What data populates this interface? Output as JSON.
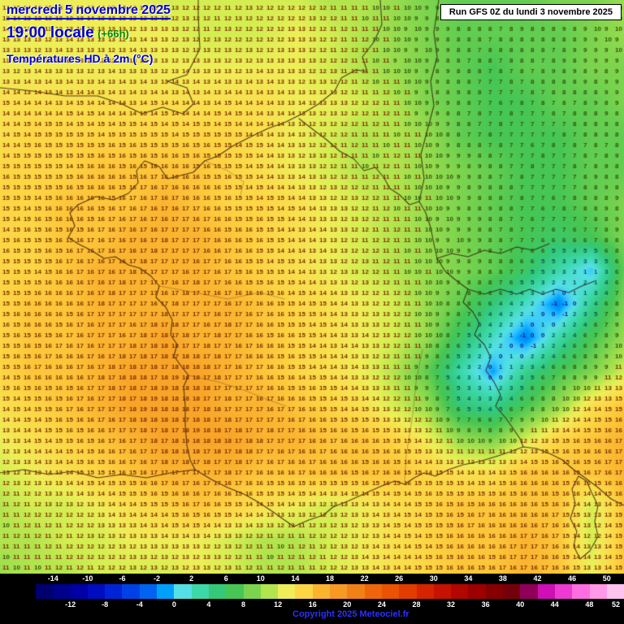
{
  "header": {
    "date": "mercredi 5 novembre 2025",
    "time": "19:00 locale",
    "offset": "(+66h)",
    "parameter": "Températures HD à 2m (°C)"
  },
  "run_box": {
    "text": "Run GFS 0Z du lundi 3 novembre 2025"
  },
  "footer": {
    "copyright": "Copyright 2025 Meteociel.fr"
  },
  "colors": {
    "header_blue": "#0000cc",
    "offset_green": "#008800",
    "copyright_blue": "#2f2fff",
    "background_black": "#000000"
  },
  "scale": {
    "min": -16,
    "max": 52,
    "step": 2,
    "top_labels": [
      "-14",
      "-10",
      "-6",
      "-2",
      "2",
      "6",
      "10",
      "14",
      "18",
      "22",
      "26",
      "30",
      "34",
      "38",
      "42",
      "46",
      "50"
    ],
    "bottom_labels": [
      "-12",
      "-8",
      "-4",
      "0",
      "4",
      "8",
      "12",
      "16",
      "20",
      "24",
      "28",
      "32",
      "36",
      "40",
      "44",
      "48",
      "52"
    ],
    "stops": [
      [
        -16,
        "#000060"
      ],
      [
        -10,
        "#0000b4"
      ],
      [
        -6,
        "#0030e0"
      ],
      [
        -3,
        "#0064f0"
      ],
      [
        -1,
        "#00a0ff"
      ],
      [
        0,
        "#38c8ff"
      ],
      [
        1,
        "#54e0e4"
      ],
      [
        3,
        "#3cd8a8"
      ],
      [
        5,
        "#34c878"
      ],
      [
        7,
        "#46c654"
      ],
      [
        9,
        "#7cd44e"
      ],
      [
        11,
        "#b2e44e"
      ],
      [
        12,
        "#d4ee52"
      ],
      [
        13,
        "#eeee58"
      ],
      [
        14,
        "#f8e04e"
      ],
      [
        15,
        "#fcd644"
      ],
      [
        16,
        "#fcc63a"
      ],
      [
        17,
        "#fab430"
      ],
      [
        18,
        "#f8a428"
      ],
      [
        20,
        "#f59020"
      ],
      [
        22,
        "#f07010"
      ],
      [
        26,
        "#e84800"
      ],
      [
        30,
        "#d01800"
      ],
      [
        34,
        "#a80000"
      ],
      [
        38,
        "#7c0000"
      ],
      [
        40,
        "#6c0014"
      ],
      [
        42,
        "#b400a0"
      ],
      [
        44,
        "#e420c8"
      ],
      [
        47,
        "#ff6ee0"
      ],
      [
        50,
        "#ffaeea"
      ],
      [
        52,
        "#ffd8f4"
      ]
    ]
  },
  "chart_data": {
    "type": "heatmap",
    "title": "Températures HD à 2m (°C)",
    "units": "°C",
    "valid_time": "mercredi 5 novembre 2025 19:00 locale (+66h)",
    "model_run": "Run GFS 0Z du lundi 3 novembre 2025",
    "legend_range": [
      -16,
      52
    ],
    "grid": {
      "cols": 20,
      "rows": 18,
      "note": "2m temperatures (°C) over France/W-Europe, coarse control grid west-to-east, north-to-south",
      "temps": [
        [
          13,
          13,
          13,
          13,
          13,
          12,
          12,
          12,
          12,
          12,
          11,
          11,
          10,
          9,
          8,
          8,
          8,
          9,
          9,
          10
        ],
        [
          13,
          13,
          13,
          13,
          13,
          13,
          12,
          12,
          12,
          13,
          12,
          11,
          10,
          9,
          8,
          8,
          8,
          8,
          9,
          10
        ],
        [
          13,
          13,
          13,
          13,
          13,
          13,
          13,
          13,
          13,
          13,
          12,
          11,
          10,
          9,
          8,
          7,
          8,
          8,
          9,
          9
        ],
        [
          14,
          14,
          14,
          14,
          14,
          14,
          14,
          14,
          14,
          13,
          13,
          12,
          11,
          9,
          8,
          7,
          7,
          8,
          8,
          9
        ],
        [
          14,
          15,
          15,
          15,
          15,
          15,
          15,
          15,
          14,
          13,
          12,
          11,
          11,
          10,
          8,
          7,
          7,
          7,
          8,
          8
        ],
        [
          15,
          15,
          15,
          16,
          16,
          16,
          16,
          15,
          14,
          13,
          12,
          11,
          11,
          10,
          9,
          8,
          7,
          7,
          8,
          8
        ],
        [
          15,
          15,
          16,
          16,
          16,
          17,
          16,
          15,
          15,
          14,
          13,
          12,
          11,
          10,
          9,
          8,
          7,
          7,
          8,
          9
        ],
        [
          15,
          15,
          16,
          16,
          17,
          17,
          17,
          16,
          15,
          14,
          13,
          12,
          11,
          10,
          9,
          8,
          7,
          6,
          7,
          9
        ],
        [
          15,
          15,
          16,
          17,
          17,
          17,
          17,
          16,
          15,
          14,
          13,
          12,
          11,
          10,
          9,
          8,
          6,
          3,
          0,
          8
        ],
        [
          15,
          16,
          16,
          17,
          17,
          17,
          17,
          17,
          16,
          15,
          14,
          13,
          12,
          10,
          8,
          5,
          2,
          -2,
          4,
          9
        ],
        [
          15,
          16,
          16,
          17,
          17,
          18,
          17,
          17,
          16,
          15,
          14,
          13,
          12,
          10,
          6,
          2,
          -2,
          3,
          7,
          10
        ],
        [
          15,
          16,
          16,
          17,
          18,
          18,
          18,
          17,
          16,
          15,
          14,
          13,
          11,
          8,
          3,
          -1,
          4,
          7,
          9,
          12
        ],
        [
          14,
          15,
          16,
          17,
          18,
          18,
          18,
          17,
          17,
          16,
          15,
          14,
          12,
          10,
          5,
          4,
          7,
          10,
          14,
          16
        ],
        [
          13,
          14,
          15,
          16,
          17,
          18,
          18,
          18,
          17,
          17,
          16,
          16,
          15,
          13,
          10,
          9,
          12,
          15,
          16,
          17
        ],
        [
          12,
          13,
          14,
          15,
          16,
          17,
          17,
          17,
          16,
          16,
          16,
          16,
          16,
          15,
          14,
          14,
          16,
          16,
          16,
          17
        ],
        [
          11,
          12,
          12,
          13,
          14,
          15,
          16,
          15,
          14,
          13,
          12,
          13,
          14,
          15,
          16,
          16,
          16,
          16,
          12,
          16
        ],
        [
          11,
          11,
          12,
          12,
          13,
          13,
          13,
          12,
          11,
          11,
          12,
          13,
          14,
          15,
          16,
          16,
          17,
          16,
          12,
          16
        ],
        [
          10,
          11,
          11,
          12,
          12,
          12,
          13,
          12,
          11,
          11,
          12,
          13,
          14,
          15,
          16,
          16,
          17,
          16,
          13,
          16
        ]
      ]
    }
  }
}
